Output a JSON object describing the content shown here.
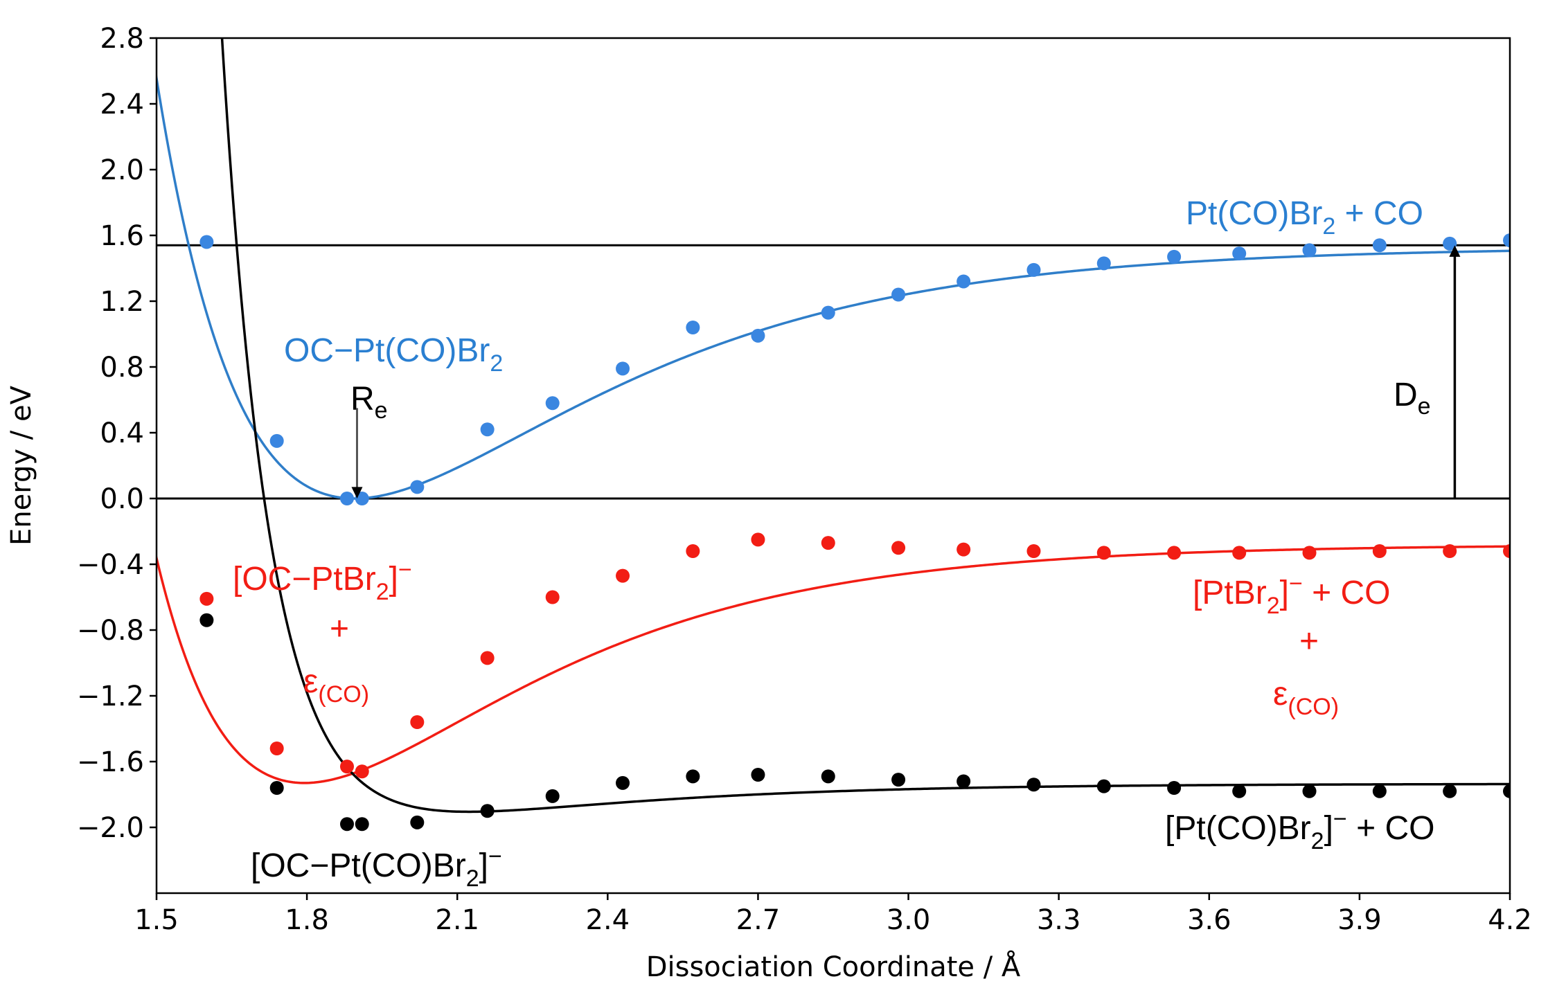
{
  "chart_data": {
    "type": "scatter",
    "title": "",
    "xlabel": "Dissociation Coordinate / Å",
    "ylabel": "Energy / eV",
    "xlim": [
      1.5,
      4.2
    ],
    "ylim": [
      -2.4,
      2.8
    ],
    "grid": false,
    "xticks": [
      1.5,
      1.8,
      2.1,
      2.4,
      2.7,
      3.0,
      3.3,
      3.6,
      3.9,
      4.2
    ],
    "xtick_labels": [
      "1.5",
      "1.8",
      "2.1",
      "2.4",
      "2.7",
      "3.0",
      "3.3",
      "3.6",
      "3.9",
      "4.2"
    ],
    "yticks": [
      2.8,
      2.4,
      2.0,
      1.6,
      1.2,
      0.8,
      0.4,
      0.0,
      -0.4,
      -0.8,
      -1.2,
      -1.6,
      -2.0
    ],
    "ytick_labels": [
      "2.8",
      "2.4",
      "2.0",
      "1.6",
      "1.2",
      "0.8",
      "0.4",
      "0.0",
      "−0.4",
      "−0.8",
      "−1.2",
      "−1.6",
      "−2.0"
    ],
    "reference_lines": [
      1.54,
      0.0
    ],
    "series": [
      {
        "name": "OC−Pt(CO)Br2",
        "color": "#2f7ec9",
        "point_color": "#3a86e0",
        "x": [
          1.6,
          1.74,
          1.88,
          1.91,
          2.02,
          2.16,
          2.29,
          2.43,
          2.57,
          2.7,
          2.84,
          2.98,
          3.11,
          3.25,
          3.39,
          3.53,
          3.66,
          3.8,
          3.94,
          4.08,
          4.2
        ],
        "y": [
          1.56,
          0.35,
          0.0,
          0.0,
          0.07,
          0.42,
          0.58,
          0.79,
          1.04,
          0.99,
          1.13,
          1.24,
          1.32,
          1.39,
          1.43,
          1.47,
          1.49,
          1.51,
          1.54,
          1.55,
          1.57
        ],
        "fit": {
          "De": 1.53,
          "Re": 1.895,
          "a": 2.1,
          "shift": 0.0
        }
      },
      {
        "name": "[OC−PtBr2]− + ε(CO)",
        "color": "#f21d14",
        "point_color": "#f21d14",
        "x": [
          1.6,
          1.74,
          1.88,
          1.91,
          2.02,
          2.16,
          2.29,
          2.43,
          2.57,
          2.7,
          2.84,
          2.98,
          3.11,
          3.25,
          3.39,
          3.53,
          3.66,
          3.8,
          3.94,
          4.08,
          4.2
        ],
        "y": [
          -0.61,
          -1.52,
          -1.63,
          -1.66,
          -1.36,
          -0.97,
          -0.6,
          -0.47,
          -0.32,
          -0.25,
          -0.27,
          -0.3,
          -0.31,
          -0.32,
          -0.33,
          -0.33,
          -0.33,
          -0.33,
          -0.32,
          -0.32,
          -0.32
        ],
        "fit": {
          "De": 1.45,
          "Re": 1.795,
          "a": 2.3,
          "shift": -1.73
        }
      },
      {
        "name": "[OC−Pt(CO)Br2]−",
        "color": "#000000",
        "point_color": "#000000",
        "x": [
          1.6,
          1.74,
          1.88,
          1.91,
          2.02,
          2.16,
          2.29,
          2.43,
          2.57,
          2.7,
          2.84,
          2.98,
          3.11,
          3.25,
          3.39,
          3.53,
          3.66,
          3.8,
          3.94,
          4.08,
          4.2
        ],
        "y": [
          -0.74,
          -1.76,
          -1.98,
          -1.98,
          -1.97,
          -1.9,
          -1.81,
          -1.73,
          -1.69,
          -1.68,
          -1.69,
          -1.71,
          -1.72,
          -1.74,
          -1.75,
          -1.76,
          -1.78,
          -1.78,
          -1.78,
          -1.78,
          -1.78
        ],
        "fit": {
          "De": 0.235,
          "Re": 1.905,
          "a": 2.4,
          "shift": -1.97,
          "rep_A": 18,
          "rep_b": 10.5
        }
      }
    ],
    "annotations": {
      "blue_top_right": {
        "main": "Pt(CO)Br",
        "sub": "2",
        "tail": " + CO"
      },
      "blue_well": {
        "main": "OC−Pt(CO)Br",
        "sub": "2"
      },
      "re_label": {
        "main": "R",
        "sub": "e"
      },
      "de_label": {
        "main": "D",
        "sub": "e"
      },
      "red_left": {
        "main": "[OC−PtBr",
        "sub": "2",
        "tail": "]",
        "sup": "−"
      },
      "red_left_plus": "+",
      "red_left_eps": {
        "main": "ε",
        "sub": "(CO)"
      },
      "red_right": {
        "main": "[PtBr",
        "sub": "2",
        "tail": "]",
        "sup": "−",
        "tail2": " + CO"
      },
      "red_right_plus": "+",
      "red_right_eps": {
        "main": "ε",
        "sub": "(CO)"
      },
      "black_well": {
        "main": "[OC−Pt(CO)Br",
        "sub": "2",
        "tail": "]",
        "sup": "−"
      },
      "black_right": {
        "main": "[Pt(CO)Br",
        "sub": "2",
        "tail": "]",
        "sup": "−",
        "tail2": " + CO"
      }
    }
  }
}
